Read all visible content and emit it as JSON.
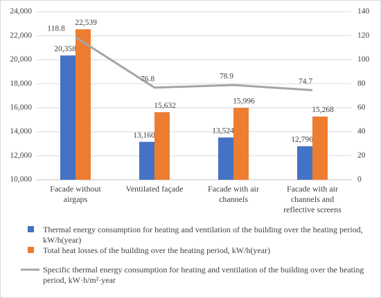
{
  "chart_data": {
    "type": "bar",
    "categories": [
      "Facade without airgaps",
      "Ventilated façade",
      "Facade with air channels",
      "Facade with air channels and reflective screens"
    ],
    "series": [
      {
        "name": "Thermal energy consumption for heating and ventilation of the building over the heating period, kW/h(year)",
        "color": "#4472c4",
        "type": "bar",
        "values": [
          20358,
          13160,
          13524,
          12796
        ],
        "value_labels": [
          "20,358",
          "13,160",
          "13,524",
          "12,796"
        ]
      },
      {
        "name": "Total heat losses of the building over the heating period, kW/h(year)",
        "color": "#ed7d31",
        "type": "bar",
        "values": [
          22539,
          15632,
          15996,
          15268
        ],
        "value_labels": [
          "22,539",
          "15,632",
          "15,996",
          "15,268"
        ]
      },
      {
        "name": "Specific thermal energy consumption for heating and ventilation of the building over the heating period, kW·h/m²·year",
        "color": "#a5a5a5",
        "type": "line",
        "axis": "y2",
        "values": [
          118.8,
          76.8,
          78.9,
          74.7
        ]
      }
    ],
    "ylim": [
      10000,
      24000
    ],
    "yticks": [
      {
        "value": 10000,
        "label": "10,000"
      },
      {
        "value": 12000,
        "label": "12,000"
      },
      {
        "value": 14000,
        "label": "14,000"
      },
      {
        "value": 16000,
        "label": "16,000"
      },
      {
        "value": 18000,
        "label": "18,000"
      },
      {
        "value": 20000,
        "label": "20,000"
      },
      {
        "value": 22000,
        "label": "22,000"
      },
      {
        "value": 24000,
        "label": "24,000"
      }
    ],
    "y2lim": [
      0,
      140
    ],
    "y2ticks": [
      0,
      20,
      40,
      60,
      80,
      100,
      120,
      140
    ],
    "grid": true
  }
}
